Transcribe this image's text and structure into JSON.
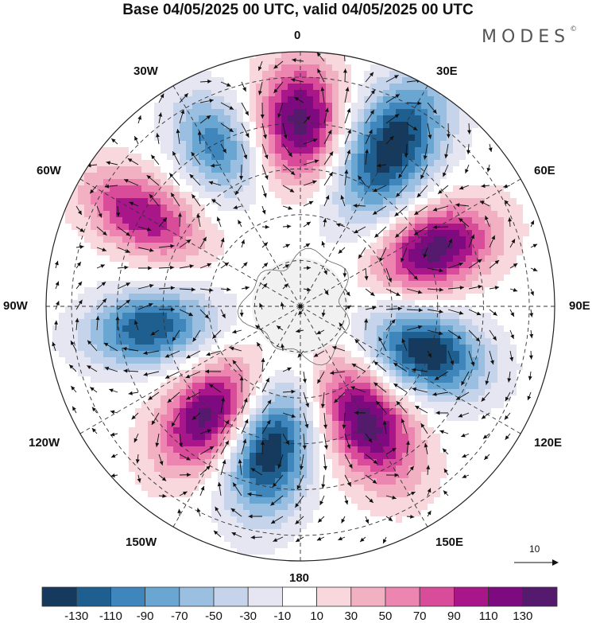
{
  "title": "Base 04/05/2025 00 UTC, valid 04/05/2025 00 UTC",
  "brand": {
    "text": "MODES",
    "mark": "©"
  },
  "longitude_labels": [
    {
      "key": "lon0",
      "text": "0"
    },
    {
      "key": "lon30e",
      "text": "30E"
    },
    {
      "key": "lon60e",
      "text": "60E"
    },
    {
      "key": "lon90e",
      "text": "90E"
    },
    {
      "key": "lon120e",
      "text": "120E"
    },
    {
      "key": "lon150e",
      "text": "150E"
    },
    {
      "key": "lon180",
      "text": "180"
    },
    {
      "key": "lon150w",
      "text": "150W"
    },
    {
      "key": "lon120w",
      "text": "120W"
    },
    {
      "key": "lon90w",
      "text": "90W"
    },
    {
      "key": "lon60w",
      "text": "60W"
    },
    {
      "key": "lon30w",
      "text": "30W"
    }
  ],
  "vector_reference": {
    "value": "10",
    "icon": "arrow-icon"
  },
  "colorbar": {
    "colors": [
      "#163a5e",
      "#1e5f8f",
      "#3f86bd",
      "#6aa6d2",
      "#9bbfe0",
      "#c5d4ea",
      "#e6e6f2",
      "#ffffff",
      "#f8d8dc",
      "#f2b1c3",
      "#ec86b0",
      "#d84c9a",
      "#a8168a",
      "#7d0b7f",
      "#551a6e"
    ],
    "ticks": [
      "-130",
      "-110",
      "-90",
      "-70",
      "-50",
      "-30",
      "-10",
      "10",
      "30",
      "50",
      "70",
      "90",
      "110",
      "130"
    ]
  },
  "field": {
    "centers": [
      {
        "value": 140,
        "lon": 0,
        "r": 0.73,
        "a": 0.27,
        "t": 0.11
      },
      {
        "value": -150,
        "lon": 30,
        "r": 0.72,
        "a": 0.34,
        "t": 0.12
      },
      {
        "value": 140,
        "lon": 67,
        "r": 0.58,
        "a": 0.27,
        "t": 0.11
      },
      {
        "value": -150,
        "lon": 110,
        "r": 0.53,
        "a": 0.27,
        "t": 0.11
      },
      {
        "value": 140,
        "lon": 150,
        "r": 0.53,
        "a": 0.3,
        "t": 0.11
      },
      {
        "value": -150,
        "lon": 192,
        "r": 0.58,
        "a": 0.3,
        "t": 0.11
      },
      {
        "value": 140,
        "lon": 220,
        "r": 0.56,
        "a": 0.28,
        "t": 0.11
      },
      {
        "value": -130,
        "lon": 262,
        "r": 0.6,
        "a": 0.28,
        "t": 0.1
      },
      {
        "value": 110,
        "lon": 300,
        "r": 0.72,
        "a": 0.28,
        "t": 0.1
      },
      {
        "value": -100,
        "lon": 332,
        "r": 0.72,
        "a": 0.24,
        "t": 0.1
      }
    ]
  }
}
